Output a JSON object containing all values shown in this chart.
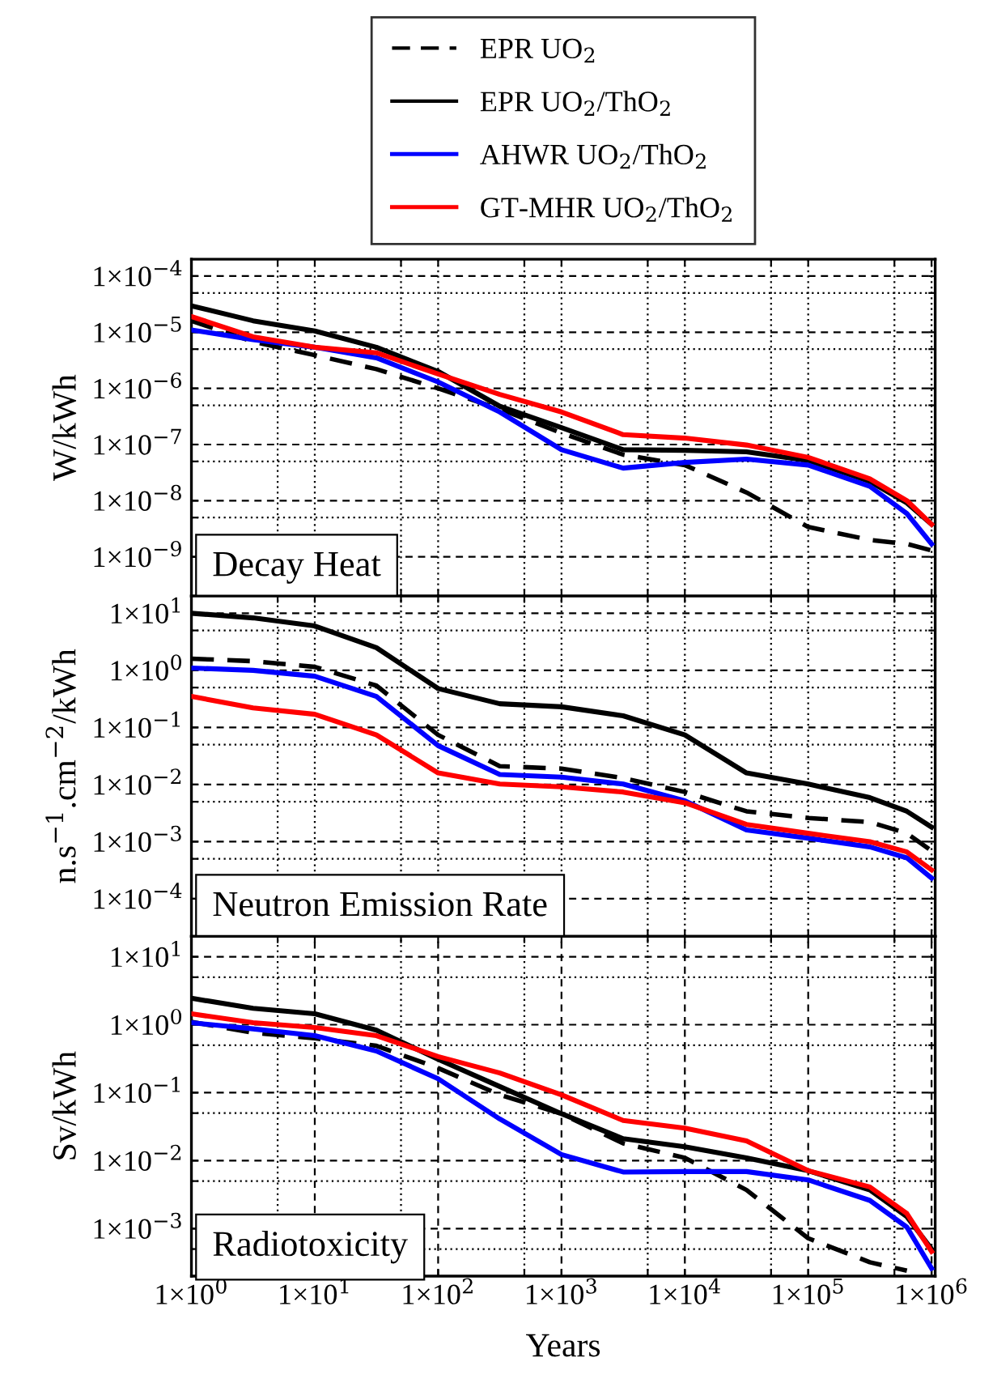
{
  "chart_data": [
    {
      "type": "line",
      "ylabel": "W/kWh",
      "annotations": [
        "Decay Heat"
      ],
      "legend": "top",
      "log": "xy",
      "grid": true,
      "tick_labels": "y",
      "x": [
        1,
        3.16,
        10,
        31.6,
        100,
        316,
        1000,
        3160,
        10000,
        31600,
        100000,
        316000,
        631000,
        1000000
      ],
      "xlim": [
        1,
        1070000
      ],
      "xticks": [
        {
          "value": 1,
          "label": null
        },
        {
          "value": 5,
          "label": null
        },
        {
          "value": 10,
          "label": null
        },
        {
          "value": 50,
          "label": null
        },
        {
          "value": 100,
          "label": null
        },
        {
          "value": 500,
          "label": null
        },
        {
          "value": 1000,
          "label": null
        },
        {
          "value": 5000,
          "label": null
        },
        {
          "value": 10000,
          "label": null
        },
        {
          "value": 50000,
          "label": null
        },
        {
          "value": 100000,
          "label": null
        },
        {
          "value": 500000,
          "label": null
        },
        {
          "value": 1000000,
          "label": null
        }
      ],
      "ylim": [
        2e-10,
        0.0002
      ],
      "yticks": [
        {
          "value": 1e-09,
          "label": "1×10$^{−9}$"
        },
        {
          "value": 5e-09,
          "label": null
        },
        {
          "value": 1e-08,
          "label": "1×10$^{−8}$"
        },
        {
          "value": 5e-08,
          "label": null
        },
        {
          "value": 1e-07,
          "label": "1×10$^{−7}$"
        },
        {
          "value": 5e-07,
          "label": null
        },
        {
          "value": 1e-06,
          "label": "1×10$^{−6}$"
        },
        {
          "value": 5e-06,
          "label": null
        },
        {
          "value": 1e-05,
          "label": "1×10$^{−5}$"
        },
        {
          "value": 5e-05,
          "label": null
        },
        {
          "value": 0.0001,
          "label": "1×10$^{−4}$"
        }
      ],
      "series": [
        {
          "name": "EPR UO$_{2}$",
          "color": "#000000",
          "line_style": "dashed",
          "values": [
            1.6e-05,
            6.8e-06,
            3.9e-06,
            2.2e-06,
            1e-06,
            4.3e-07,
            1.6e-07,
            6.6e-08,
            4.3e-08,
            1.4e-08,
            3.4e-09,
            2e-09,
            1.7e-09,
            1.3e-09
          ]
        },
        {
          "name": "EPR UO$_{2}$/ThO$_{2}$",
          "color": "#000000",
          "line_style": "solid",
          "values": [
            2.95e-05,
            1.6e-05,
            1.05e-05,
            5.4e-06,
            2e-06,
            4.8e-07,
            2e-07,
            8.1e-08,
            7.9e-08,
            7.4e-08,
            5.2e-08,
            2.2e-08,
            9.1e-09,
            3.8e-09
          ]
        },
        {
          "name": "AHWR UO$_{2}$/ThO$_{2}$",
          "color": "#0000ff",
          "line_style": "solid",
          "values": [
            1.1e-05,
            7.4e-06,
            5.4e-06,
            3.5e-06,
            1.3e-06,
            3.8e-07,
            8.1e-08,
            3.8e-08,
            4.8e-08,
            5.5e-08,
            4.3e-08,
            1.8e-08,
            5.9e-09,
            1.7e-09
          ]
        },
        {
          "name": "GT-MHR UO$_{2}$/ThO$_{2}$",
          "color": "#ff0000",
          "line_style": "solid",
          "values": [
            1.9e-05,
            8.3e-06,
            5.4e-06,
            4.3e-06,
            1.8e-06,
            7.8e-07,
            3.8e-07,
            1.5e-07,
            1.3e-07,
            9.8e-08,
            5.9e-08,
            2.45e-08,
            1e-08,
            3.8e-09
          ]
        }
      ]
    },
    {
      "type": "line",
      "ylabel": "n.s$^{−1}$.cm$^{−2}$/kWh",
      "annotations": [
        "Neutron Emission Rate"
      ],
      "log": "xy",
      "grid": true,
      "tick_labels": "y",
      "x": [
        1,
        3.16,
        10,
        31.6,
        100,
        316,
        1000,
        3160,
        10000,
        31600,
        100000,
        316000,
        631000,
        1000000
      ],
      "xlim": [
        1,
        1070000
      ],
      "xticks": [
        {
          "value": 1,
          "label": null
        },
        {
          "value": 5,
          "label": null
        },
        {
          "value": 10,
          "label": null
        },
        {
          "value": 50,
          "label": null
        },
        {
          "value": 100,
          "label": null
        },
        {
          "value": 500,
          "label": null
        },
        {
          "value": 1000,
          "label": null
        },
        {
          "value": 5000,
          "label": null
        },
        {
          "value": 10000,
          "label": null
        },
        {
          "value": 50000,
          "label": null
        },
        {
          "value": 100000,
          "label": null
        },
        {
          "value": 500000,
          "label": null
        },
        {
          "value": 1000000,
          "label": null
        }
      ],
      "ylim": [
        2.2e-05,
        20
      ],
      "yticks": [
        {
          "value": 0.0001,
          "label": "1×10$^{−4}$"
        },
        {
          "value": 0.0005,
          "label": null
        },
        {
          "value": 0.001,
          "label": "1×10$^{−3}$"
        },
        {
          "value": 0.005,
          "label": null
        },
        {
          "value": 0.01,
          "label": "1×10$^{−2}$"
        },
        {
          "value": 0.05,
          "label": null
        },
        {
          "value": 0.1,
          "label": "1×10$^{−1}$"
        },
        {
          "value": 0.5,
          "label": null
        },
        {
          "value": 1,
          "label": "1×10$^{0}$"
        },
        {
          "value": 5,
          "label": null
        },
        {
          "value": 10,
          "label": "1×10$^{1}$"
        }
      ],
      "series": [
        {
          "color": "#000000",
          "line_style": "dashed",
          "values": [
            1.6,
            1.45,
            1.15,
            0.54,
            0.074,
            0.021,
            0.019,
            0.013,
            0.0074,
            0.0034,
            0.0026,
            0.0022,
            0.0014,
            0.00069
          ]
        },
        {
          "color": "#000000",
          "line_style": "solid",
          "values": [
            10,
            8.3,
            6.0,
            2.5,
            0.48,
            0.26,
            0.23,
            0.16,
            0.074,
            0.016,
            0.0102,
            0.0059,
            0.0034,
            0.0018
          ]
        },
        {
          "color": "#0000ff",
          "line_style": "solid",
          "values": [
            1.1,
            1.0,
            0.79,
            0.35,
            0.048,
            0.015,
            0.0135,
            0.0102,
            0.0052,
            0.0016,
            0.00115,
            0.00081,
            0.00052,
            0.00023
          ]
        },
        {
          "color": "#ff0000",
          "line_style": "solid",
          "values": [
            0.35,
            0.22,
            0.17,
            0.074,
            0.016,
            0.0102,
            0.0091,
            0.0074,
            0.0048,
            0.002,
            0.0014,
            0.001,
            0.00066,
            0.00032
          ]
        }
      ]
    },
    {
      "type": "line",
      "ylabel": "Sv/kWh",
      "xlabel": "Years",
      "annotations": [
        "Radiotoxicity"
      ],
      "log": "xy",
      "grid": true,
      "x": [
        1,
        3.16,
        10,
        31.6,
        100,
        316,
        1000,
        3160,
        10000,
        31600,
        100000,
        316000,
        631000,
        1000000
      ],
      "xlim": [
        1,
        1070000
      ],
      "xticks": [
        {
          "value": 1,
          "label": "1×10$^{0}$"
        },
        {
          "value": 5,
          "label": null
        },
        {
          "value": 10,
          "label": "1×10$^{1}$"
        },
        {
          "value": 50,
          "label": null
        },
        {
          "value": 100,
          "label": "1×10$^{2}$"
        },
        {
          "value": 500,
          "label": null
        },
        {
          "value": 1000,
          "label": "1×10$^{3}$"
        },
        {
          "value": 5000,
          "label": null
        },
        {
          "value": 10000,
          "label": "1×10$^{4}$"
        },
        {
          "value": 50000,
          "label": null
        },
        {
          "value": 100000,
          "label": "1×10$^{5}$"
        },
        {
          "value": 500000,
          "label": null
        },
        {
          "value": 1000000,
          "label": "1×10$^{6}$"
        }
      ],
      "ylim": [
        0.0002,
        20
      ],
      "yticks": [
        {
          "value": 0.0005,
          "label": null
        },
        {
          "value": 0.001,
          "label": "1×10$^{−3}$"
        },
        {
          "value": 0.005,
          "label": null
        },
        {
          "value": 0.01,
          "label": "1×10$^{−2}$"
        },
        {
          "value": 0.05,
          "label": null
        },
        {
          "value": 0.1,
          "label": "1×10$^{−1}$"
        },
        {
          "value": 0.5,
          "label": null
        },
        {
          "value": 1,
          "label": "1×10$^{0}$"
        },
        {
          "value": 5,
          "label": null
        },
        {
          "value": 10,
          "label": "1×10$^{1}$"
        }
      ],
      "series": [
        {
          "color": "#000000",
          "line_style": "dashed",
          "values": [
            1.1,
            0.76,
            0.63,
            0.49,
            0.23,
            0.093,
            0.049,
            0.018,
            0.011,
            0.0037,
            0.00072,
            0.00032,
            0.00024,
            null
          ]
        },
        {
          "color": "#000000",
          "line_style": "solid",
          "values": [
            2.45,
            1.74,
            1.45,
            0.83,
            0.31,
            0.123,
            0.049,
            0.021,
            0.016,
            0.011,
            0.0071,
            0.0037,
            0.0015,
            0.0005
          ]
        },
        {
          "color": "#0000ff",
          "line_style": "solid",
          "values": [
            1.07,
            0.87,
            0.69,
            0.41,
            0.16,
            0.041,
            0.0123,
            0.0068,
            0.0069,
            0.0069,
            0.0052,
            0.0026,
            0.00105,
            0.00026
          ]
        },
        {
          "color": "#ff0000",
          "line_style": "solid",
          "values": [
            1.45,
            1.07,
            0.91,
            0.69,
            0.34,
            0.195,
            0.093,
            0.039,
            0.03,
            0.0195,
            0.0071,
            0.0041,
            0.00166,
            0.00046
          ]
        }
      ]
    }
  ]
}
